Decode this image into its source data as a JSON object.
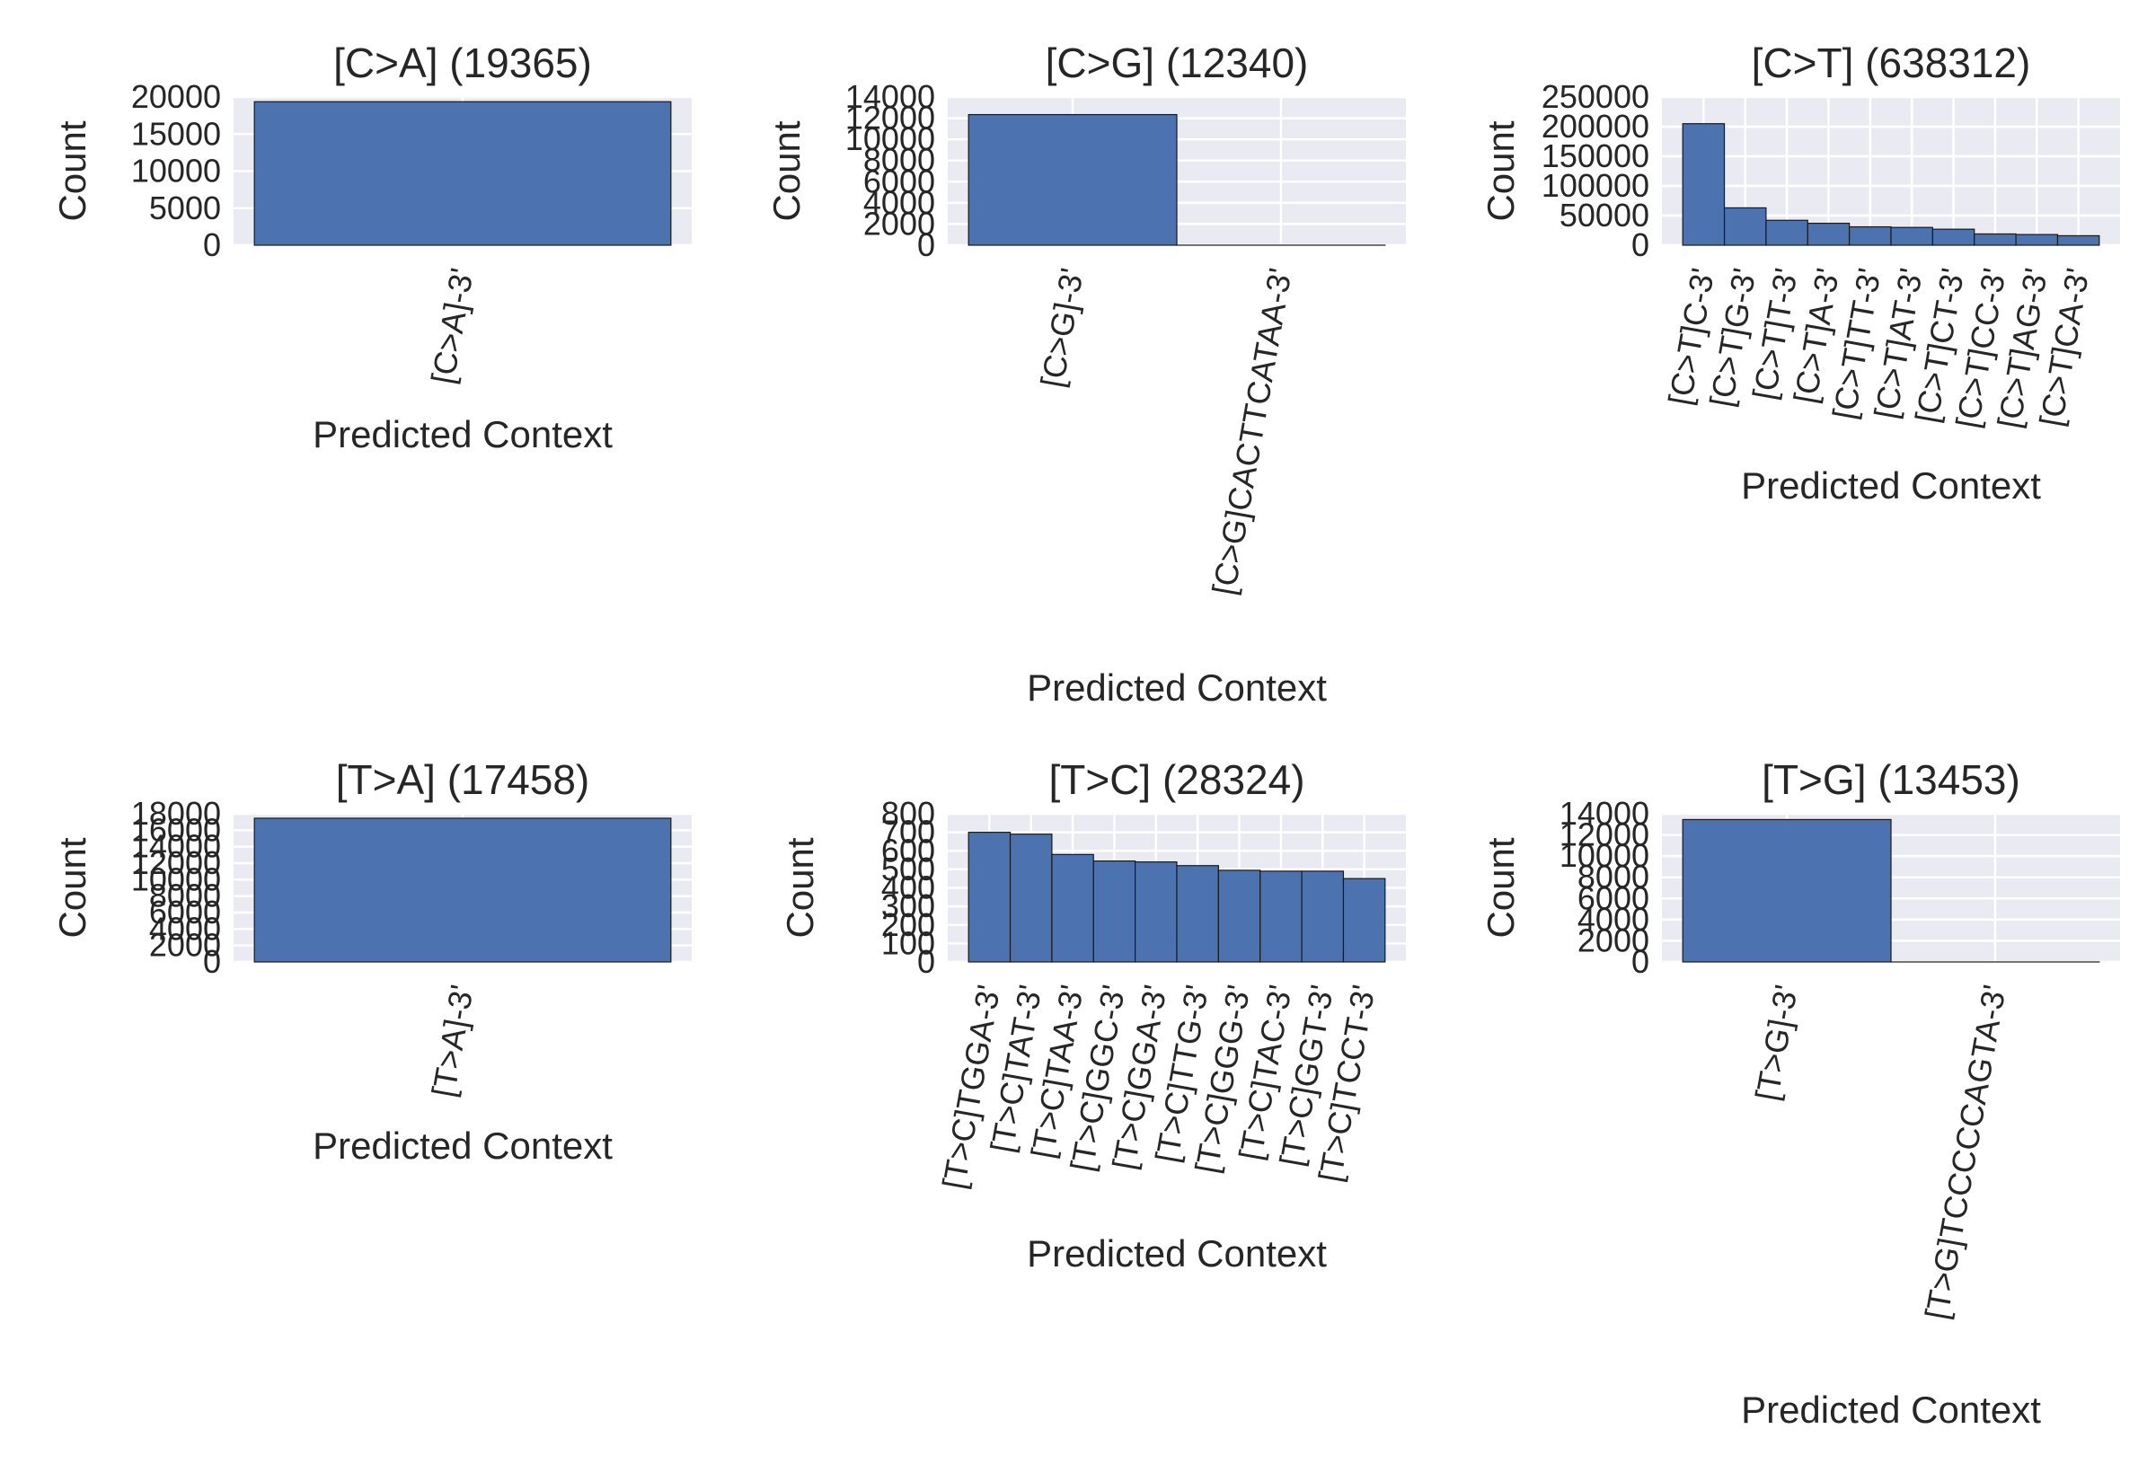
{
  "colors": {
    "plot_background": "#eaeaf2",
    "grid": "#ffffff",
    "bar_fill": "#4c72b0",
    "bar_edge": "#1a1a1a",
    "text": "#262626"
  },
  "chart_data": [
    {
      "type": "bar",
      "title": "[C>A] (19365)",
      "xlabel": "Predicted Context",
      "ylabel": "Count",
      "categories": [
        "[C>A]-3'"
      ],
      "values": [
        19365
      ],
      "ylim": [
        0,
        20000
      ],
      "yticks": [
        "0",
        "5000",
        "10000",
        "15000",
        "20000"
      ],
      "grid": true
    },
    {
      "type": "bar",
      "title": "[C>G] (12340)",
      "xlabel": "Predicted Context",
      "ylabel": "Count",
      "categories": [
        "[C>G]-3'",
        "[C>G]CACTTCATAA-3'"
      ],
      "values": [
        12339,
        1
      ],
      "ylim": [
        0,
        14000
      ],
      "yticks": [
        "0",
        "2000",
        "4000",
        "6000",
        "8000",
        "10000",
        "12000",
        "14000"
      ],
      "grid": true
    },
    {
      "type": "bar",
      "title": "[C>T] (638312)",
      "xlabel": "Predicted Context",
      "ylabel": "Count",
      "categories": [
        "[C>T]C-3'",
        "[C>T]G-3'",
        "[C>T]T-3'",
        "[C>T]A-3'",
        "[C>T]TT-3'",
        "[C>T]AT-3'",
        "[C>T]CT-3'",
        "[C>T]CC-3'",
        "[C>T]AG-3'",
        "[C>T]CA-3'"
      ],
      "values": [
        205000,
        63000,
        42000,
        37000,
        31000,
        30000,
        27000,
        19000,
        18000,
        16000
      ],
      "ylim": [
        0,
        250000
      ],
      "yticks": [
        "0",
        "50000",
        "100000",
        "150000",
        "200000",
        "250000"
      ],
      "grid": true
    },
    {
      "type": "bar",
      "title": "[T>A] (17458)",
      "xlabel": "Predicted Context",
      "ylabel": "Count",
      "categories": [
        "[T>A]-3'"
      ],
      "values": [
        17458
      ],
      "ylim": [
        0,
        18000
      ],
      "yticks": [
        "0",
        "2000",
        "4000",
        "6000",
        "8000",
        "10000",
        "12000",
        "14000",
        "16000",
        "18000"
      ],
      "grid": true
    },
    {
      "type": "bar",
      "title": "[T>C] (28324)",
      "xlabel": "Predicted Context",
      "ylabel": "Count",
      "categories": [
        "[T>C]TGGA-3'",
        "[T>C]TAT-3'",
        "[T>C]TAA-3'",
        "[T>C]GGC-3'",
        "[T>C]GGA-3'",
        "[T>C]TTG-3'",
        "[T>C]GGG-3'",
        "[T>C]TAC-3'",
        "[T>C]GGT-3'",
        "[T>C]TCCT-3'"
      ],
      "values": [
        700,
        690,
        580,
        545,
        540,
        520,
        495,
        490,
        490,
        450
      ],
      "ylim": [
        0,
        800
      ],
      "yticks": [
        "0",
        "100",
        "200",
        "300",
        "400",
        "500",
        "600",
        "700",
        "800"
      ],
      "grid": true
    },
    {
      "type": "bar",
      "title": "[T>G] (13453)",
      "xlabel": "Predicted Context",
      "ylabel": "Count",
      "categories": [
        "[T>G]-3'",
        "[T>G]TCCCCCAGTA-3'"
      ],
      "values": [
        13452,
        1
      ],
      "ylim": [
        0,
        14000
      ],
      "yticks": [
        "0",
        "2000",
        "4000",
        "6000",
        "8000",
        "10000",
        "12000",
        "14000"
      ],
      "grid": true
    }
  ]
}
